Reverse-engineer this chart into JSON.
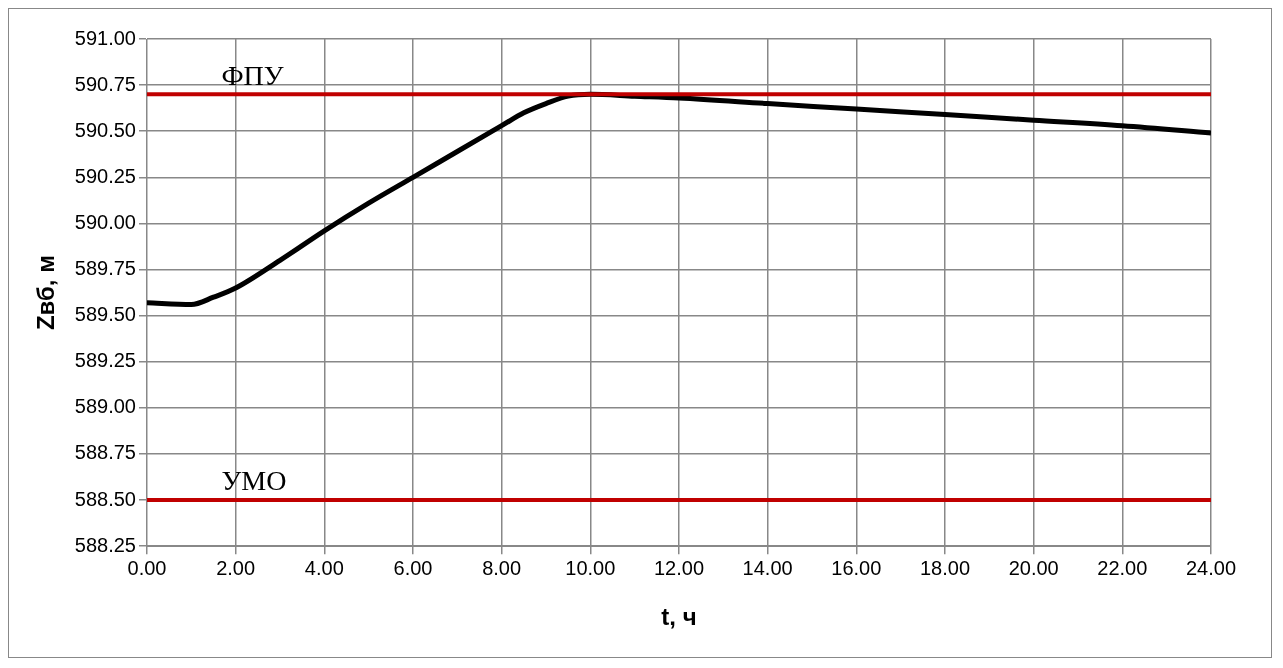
{
  "chart_data": {
    "type": "line",
    "xlabel": "t, ч",
    "ylabel": "Zвб, м",
    "x": [
      0,
      1,
      1.5,
      2,
      3,
      4,
      5,
      6,
      7,
      8,
      8.5,
      9,
      9.5,
      10,
      11,
      12,
      14,
      16,
      18,
      20,
      22,
      24
    ],
    "series": [
      {
        "color": "#000000",
        "values": [
          589.57,
          589.56,
          589.6,
          589.65,
          589.8,
          589.96,
          590.11,
          590.25,
          590.39,
          590.53,
          590.6,
          590.65,
          590.69,
          590.7,
          590.69,
          590.68,
          590.65,
          590.62,
          590.59,
          590.56,
          590.53,
          590.49
        ]
      }
    ],
    "xlim": [
      0,
      24
    ],
    "xticks": [
      {
        "value": 0,
        "label": "0.00"
      },
      {
        "value": 2,
        "label": "2.00"
      },
      {
        "value": 4,
        "label": "4.00"
      },
      {
        "value": 6,
        "label": "6.00"
      },
      {
        "value": 8,
        "label": "8.00"
      },
      {
        "value": 10,
        "label": "10.00"
      },
      {
        "value": 12,
        "label": "12.00"
      },
      {
        "value": 14,
        "label": "14.00"
      },
      {
        "value": 16,
        "label": "16.00"
      },
      {
        "value": 18,
        "label": "18.00"
      },
      {
        "value": 20,
        "label": "20.00"
      },
      {
        "value": 22,
        "label": "22.00"
      },
      {
        "value": 24,
        "label": "24.00"
      }
    ],
    "ylim": [
      588.25,
      591
    ],
    "yticks": [
      {
        "value": 588.25,
        "label": "588.25"
      },
      {
        "value": 588.5,
        "label": "588.50"
      },
      {
        "value": 588.75,
        "label": "588.75"
      },
      {
        "value": 589,
        "label": "589.00"
      },
      {
        "value": 589.25,
        "label": "589.25"
      },
      {
        "value": 589.5,
        "label": "589.50"
      },
      {
        "value": 589.75,
        "label": "589.75"
      },
      {
        "value": 590,
        "label": "590.00"
      },
      {
        "value": 590.25,
        "label": "590.25"
      },
      {
        "value": 590.5,
        "label": "590.50"
      },
      {
        "value": 590.75,
        "label": "590.75"
      },
      {
        "value": 591,
        "label": "591.00"
      }
    ],
    "ref_lines": [
      {
        "axis": "y",
        "value": 590.7,
        "label": "ФПУ",
        "color": "#c00000"
      },
      {
        "axis": "y",
        "value": 588.5,
        "label": "УМО",
        "color": "#c00000"
      }
    ],
    "grid": true,
    "legend": false,
    "marker": "none",
    "line_style": "solid"
  }
}
